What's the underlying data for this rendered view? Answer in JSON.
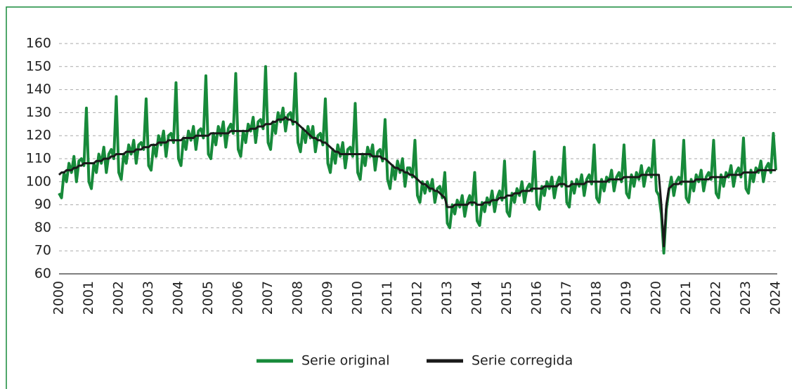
{
  "chart_data": {
    "type": "line",
    "categories": [
      "2000",
      null,
      null,
      null,
      null,
      null,
      null,
      null,
      null,
      null,
      null,
      null,
      "2001",
      null,
      null,
      null,
      null,
      null,
      null,
      null,
      null,
      null,
      null,
      null,
      "2002",
      null,
      null,
      null,
      null,
      null,
      null,
      null,
      null,
      null,
      null,
      null,
      "2003",
      null,
      null,
      null,
      null,
      null,
      null,
      null,
      null,
      null,
      null,
      null,
      "2004",
      null,
      null,
      null,
      null,
      null,
      null,
      null,
      null,
      null,
      null,
      null,
      "2005",
      null,
      null,
      null,
      null,
      null,
      null,
      null,
      null,
      null,
      null,
      null,
      "2006",
      null,
      null,
      null,
      null,
      null,
      null,
      null,
      null,
      null,
      null,
      null,
      "2007",
      null,
      null,
      null,
      null,
      null,
      null,
      null,
      null,
      null,
      null,
      null,
      "2008",
      null,
      null,
      null,
      null,
      null,
      null,
      null,
      null,
      null,
      null,
      null,
      "2009",
      null,
      null,
      null,
      null,
      null,
      null,
      null,
      null,
      null,
      null,
      null,
      "2010",
      null,
      null,
      null,
      null,
      null,
      null,
      null,
      null,
      null,
      null,
      null,
      "2011",
      null,
      null,
      null,
      null,
      null,
      null,
      null,
      null,
      null,
      null,
      null,
      "2012",
      null,
      null,
      null,
      null,
      null,
      null,
      null,
      null,
      null,
      null,
      null,
      "2013",
      null,
      null,
      null,
      null,
      null,
      null,
      null,
      null,
      null,
      null,
      null,
      "2014",
      null,
      null,
      null,
      null,
      null,
      null,
      null,
      null,
      null,
      null,
      null,
      "2015",
      null,
      null,
      null,
      null,
      null,
      null,
      null,
      null,
      null,
      null,
      null,
      "2016",
      null,
      null,
      null,
      null,
      null,
      null,
      null,
      null,
      null,
      null,
      null,
      "2017",
      null,
      null,
      null,
      null,
      null,
      null,
      null,
      null,
      null,
      null,
      null,
      "2018",
      null,
      null,
      null,
      null,
      null,
      null,
      null,
      null,
      null,
      null,
      null,
      "2019",
      null,
      null,
      null,
      null,
      null,
      null,
      null,
      null,
      null,
      null,
      null,
      "2020",
      null,
      null,
      null,
      null,
      null,
      null,
      null,
      null,
      null,
      null,
      null,
      "2021",
      null,
      null,
      null,
      null,
      null,
      null,
      null,
      null,
      null,
      null,
      null,
      "2022",
      null,
      null,
      null,
      null,
      null,
      null,
      null,
      null,
      null,
      null,
      null,
      "2023",
      null,
      null,
      null,
      null,
      null,
      null,
      null,
      null,
      null,
      null,
      null,
      "2024"
    ],
    "series": [
      {
        "name": "Serie original",
        "color": "#178a3a",
        "values": [
          95,
          93,
          104,
          100,
          108,
          104,
          111,
          100,
          109,
          110,
          107,
          132,
          100,
          97,
          108,
          104,
          112,
          108,
          115,
          104,
          112,
          114,
          110,
          137,
          104,
          101,
          112,
          108,
          116,
          112,
          118,
          108,
          116,
          117,
          114,
          136,
          107,
          105,
          116,
          111,
          120,
          116,
          122,
          111,
          120,
          121,
          117,
          143,
          110,
          107,
          119,
          114,
          122,
          118,
          124,
          114,
          122,
          123,
          119,
          146,
          112,
          110,
          121,
          116,
          124,
          120,
          126,
          115,
          123,
          125,
          121,
          147,
          114,
          111,
          122,
          117,
          125,
          122,
          128,
          117,
          126,
          127,
          123,
          150,
          117,
          114,
          126,
          121,
          130,
          126,
          132,
          122,
          129,
          130,
          125,
          147,
          117,
          113,
          123,
          117,
          124,
          119,
          124,
          113,
          120,
          121,
          116,
          136,
          108,
          104,
          114,
          108,
          116,
          111,
          117,
          106,
          114,
          115,
          111,
          134,
          104,
          101,
          112,
          107,
          115,
          111,
          116,
          105,
          113,
          114,
          109,
          127,
          101,
          97,
          107,
          101,
          109,
          104,
          110,
          98,
          106,
          106,
          102,
          118,
          94,
          91,
          100,
          95,
          100,
          96,
          101,
          91,
          97,
          98,
          93,
          104,
          82,
          80,
          90,
          86,
          92,
          89,
          94,
          85,
          91,
          94,
          90,
          104,
          83,
          81,
          91,
          87,
          93,
          90,
          96,
          87,
          93,
          96,
          92,
          109,
          87,
          85,
          95,
          91,
          97,
          94,
          100,
          91,
          97,
          99,
          96,
          113,
          90,
          88,
          98,
          94,
          100,
          97,
          102,
          93,
          99,
          102,
          98,
          115,
          91,
          89,
          100,
          95,
          101,
          98,
          103,
          94,
          101,
          103,
          99,
          116,
          93,
          91,
          101,
          96,
          102,
          100,
          105,
          96,
          102,
          104,
          100,
          116,
          95,
          93,
          103,
          98,
          104,
          101,
          107,
          98,
          104,
          106,
          102,
          118,
          96,
          94,
          86,
          69,
          88,
          96,
          102,
          94,
          100,
          102,
          99,
          118,
          93,
          91,
          101,
          96,
          103,
          100,
          105,
          96,
          102,
          104,
          101,
          118,
          95,
          93,
          103,
          98,
          104,
          102,
          107,
          98,
          104,
          106,
          102,
          119,
          97,
          95,
          105,
          100,
          106,
          104,
          109,
          100,
          106,
          108,
          104,
          121,
          105
        ]
      },
      {
        "name": "Serie corregida",
        "color": "#1a1a1a",
        "values": [
          103,
          104,
          104,
          105,
          105,
          105,
          106,
          106,
          107,
          107,
          108,
          108,
          108,
          108,
          108,
          109,
          109,
          109,
          110,
          110,
          110,
          111,
          111,
          112,
          112,
          112,
          112,
          113,
          113,
          113,
          113,
          114,
          114,
          114,
          115,
          115,
          115,
          116,
          116,
          116,
          117,
          117,
          117,
          117,
          118,
          118,
          118,
          118,
          118,
          118,
          119,
          119,
          119,
          119,
          119,
          120,
          120,
          120,
          120,
          120,
          120,
          121,
          121,
          121,
          121,
          121,
          121,
          121,
          121,
          122,
          122,
          122,
          122,
          122,
          122,
          122,
          122,
          123,
          123,
          123,
          124,
          124,
          124,
          125,
          125,
          125,
          126,
          126,
          127,
          127,
          127,
          128,
          127,
          127,
          126,
          126,
          125,
          124,
          123,
          122,
          121,
          120,
          119,
          119,
          118,
          118,
          117,
          117,
          116,
          115,
          114,
          113,
          113,
          112,
          112,
          112,
          112,
          112,
          112,
          112,
          112,
          112,
          112,
          112,
          112,
          112,
          111,
          111,
          111,
          111,
          110,
          110,
          109,
          108,
          107,
          106,
          106,
          105,
          105,
          104,
          104,
          103,
          103,
          102,
          101,
          100,
          99,
          99,
          98,
          97,
          97,
          96,
          96,
          95,
          94,
          93,
          89,
          89,
          89,
          90,
          90,
          90,
          90,
          90,
          90,
          91,
          91,
          91,
          90,
          90,
          90,
          91,
          91,
          91,
          92,
          92,
          92,
          93,
          93,
          93,
          94,
          94,
          94,
          95,
          95,
          95,
          96,
          96,
          96,
          96,
          97,
          97,
          97,
          97,
          97,
          98,
          98,
          98,
          98,
          98,
          98,
          99,
          99,
          99,
          98,
          98,
          99,
          99,
          99,
          99,
          99,
          99,
          100,
          100,
          100,
          100,
          100,
          100,
          100,
          100,
          100,
          101,
          101,
          101,
          101,
          101,
          101,
          102,
          102,
          102,
          102,
          102,
          102,
          102,
          103,
          103,
          103,
          103,
          103,
          103,
          103,
          103,
          90,
          72,
          90,
          97,
          98,
          99,
          99,
          99,
          100,
          100,
          100,
          100,
          100,
          100,
          101,
          101,
          101,
          101,
          101,
          101,
          102,
          102,
          102,
          102,
          102,
          102,
          102,
          103,
          103,
          103,
          103,
          103,
          103,
          104,
          104,
          104,
          104,
          104,
          104,
          105,
          105,
          105,
          105,
          105,
          105,
          105,
          105
        ]
      }
    ],
    "ylim": [
      60,
      160
    ],
    "yticks": [
      60,
      70,
      80,
      90,
      100,
      110,
      120,
      130,
      140,
      150,
      160
    ],
    "grid": true
  }
}
